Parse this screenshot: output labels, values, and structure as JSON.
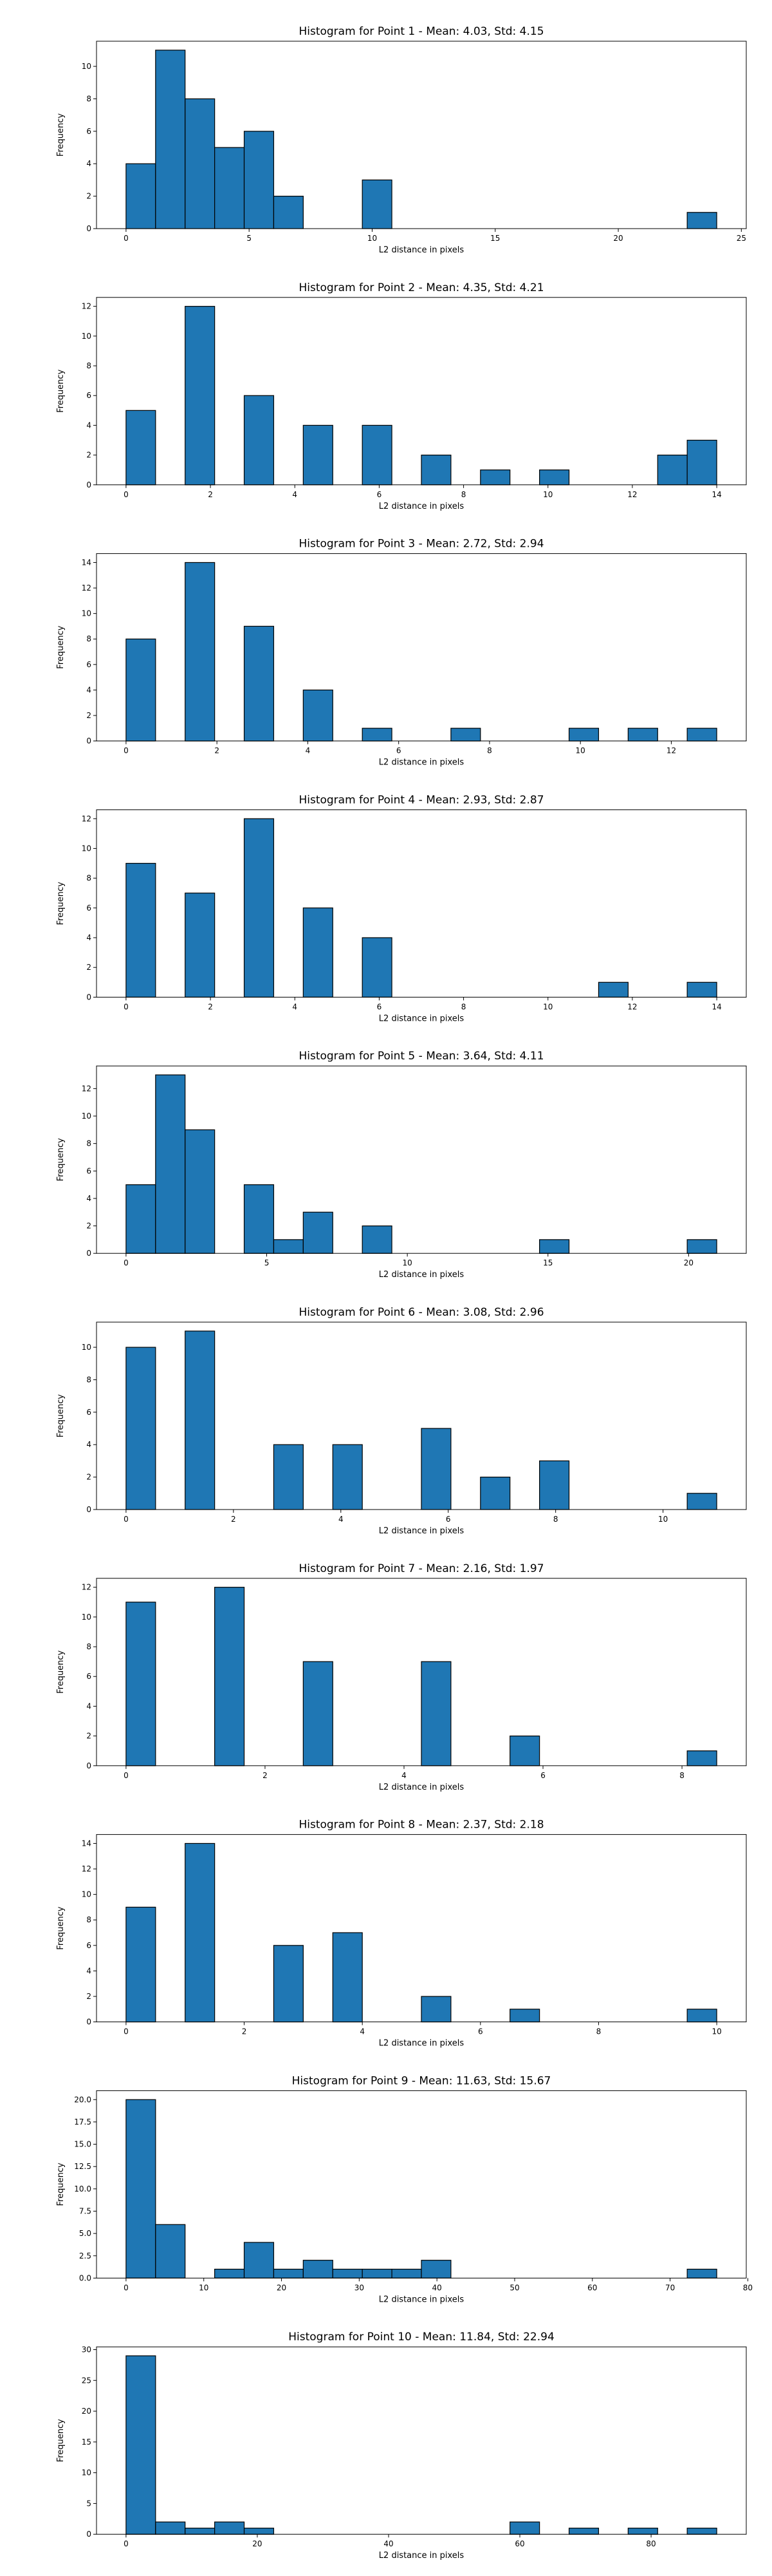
{
  "chart_data": [
    {
      "type": "bar",
      "title": "Histogram for Point 1 - Mean: 4.03, Std: 4.15",
      "xlabel": "L2 distance in pixels",
      "ylabel": "Frequency",
      "xlim": [
        -1.2,
        25.2
      ],
      "ylim": [
        0,
        11.55
      ],
      "xticks": [
        0,
        5,
        10,
        15,
        20,
        25
      ],
      "yticks": [
        0,
        2,
        4,
        6,
        8,
        10
      ],
      "ytick_labels": [
        "0",
        "2",
        "4",
        "6",
        "8",
        "10"
      ],
      "bins": [
        [
          0,
          1.2,
          4
        ],
        [
          1.2,
          2.4,
          11
        ],
        [
          2.4,
          3.6,
          8
        ],
        [
          3.6,
          4.8,
          5
        ],
        [
          4.8,
          6.0,
          6
        ],
        [
          6.0,
          7.2,
          2
        ],
        [
          9.6,
          10.8,
          3
        ],
        [
          22.8,
          24.0,
          1
        ]
      ]
    },
    {
      "type": "bar",
      "title": "Histogram for Point 2 - Mean: 4.35, Std: 4.21",
      "xlabel": "L2 distance in pixels",
      "ylabel": "Frequency",
      "xlim": [
        -0.7,
        14.7
      ],
      "ylim": [
        0,
        12.6
      ],
      "xticks": [
        0,
        2,
        4,
        6,
        8,
        10,
        12,
        14
      ],
      "yticks": [
        0,
        2,
        4,
        6,
        8,
        10,
        12
      ],
      "ytick_labels": [
        "0",
        "2",
        "4",
        "6",
        "8",
        "10",
        "12"
      ],
      "bins": [
        [
          0,
          0.7,
          5
        ],
        [
          1.4,
          2.1,
          12
        ],
        [
          2.8,
          3.5,
          6
        ],
        [
          4.2,
          4.9,
          4
        ],
        [
          5.6,
          6.3,
          4
        ],
        [
          7.0,
          7.7,
          2
        ],
        [
          8.4,
          9.1,
          1
        ],
        [
          9.8,
          10.5,
          1
        ],
        [
          12.6,
          13.3,
          2
        ],
        [
          13.3,
          14.0,
          3
        ]
      ]
    },
    {
      "type": "bar",
      "title": "Histogram for Point 3 - Mean: 2.72, Std: 2.94",
      "xlabel": "L2 distance in pixels",
      "ylabel": "Frequency",
      "xlim": [
        -0.65,
        13.65
      ],
      "ylim": [
        0,
        14.7
      ],
      "xticks": [
        0,
        2,
        4,
        6,
        8,
        10,
        12
      ],
      "yticks": [
        0,
        2,
        4,
        6,
        8,
        10,
        12,
        14
      ],
      "ytick_labels": [
        "0",
        "2",
        "4",
        "6",
        "8",
        "10",
        "12",
        "14"
      ],
      "bins": [
        [
          0,
          0.65,
          8
        ],
        [
          1.3,
          1.95,
          14
        ],
        [
          2.6,
          3.25,
          9
        ],
        [
          3.9,
          4.55,
          4
        ],
        [
          5.2,
          5.85,
          1
        ],
        [
          7.15,
          7.8,
          1
        ],
        [
          9.75,
          10.4,
          1
        ],
        [
          11.05,
          11.7,
          1
        ],
        [
          12.35,
          13.0,
          1
        ]
      ]
    },
    {
      "type": "bar",
      "title": "Histogram for Point 4 - Mean: 2.93, Std: 2.87",
      "xlabel": "L2 distance in pixels",
      "ylabel": "Frequency",
      "xlim": [
        -0.7,
        14.7
      ],
      "ylim": [
        0,
        12.6
      ],
      "xticks": [
        0,
        2,
        4,
        6,
        8,
        10,
        12,
        14
      ],
      "yticks": [
        0,
        2,
        4,
        6,
        8,
        10,
        12
      ],
      "ytick_labels": [
        "0",
        "2",
        "4",
        "6",
        "8",
        "10",
        "12"
      ],
      "bins": [
        [
          0,
          0.7,
          9
        ],
        [
          1.4,
          2.1,
          7
        ],
        [
          2.8,
          3.5,
          12
        ],
        [
          4.2,
          4.9,
          6
        ],
        [
          5.6,
          6.3,
          4
        ],
        [
          11.2,
          11.9,
          1
        ],
        [
          13.3,
          14.0,
          1
        ]
      ]
    },
    {
      "type": "bar",
      "title": "Histogram for Point 5 - Mean: 3.64, Std: 4.11",
      "xlabel": "L2 distance in pixels",
      "ylabel": "Frequency",
      "xlim": [
        -1.05,
        22.05
      ],
      "ylim": [
        0,
        13.65
      ],
      "xticks": [
        0,
        5,
        10,
        15,
        20
      ],
      "yticks": [
        0,
        2,
        4,
        6,
        8,
        10,
        12
      ],
      "ytick_labels": [
        "0",
        "2",
        "4",
        "6",
        "8",
        "10",
        "12"
      ],
      "bins": [
        [
          0,
          1.05,
          5
        ],
        [
          1.05,
          2.1,
          13
        ],
        [
          2.1,
          3.15,
          9
        ],
        [
          4.2,
          5.25,
          5
        ],
        [
          5.25,
          6.3,
          1
        ],
        [
          6.3,
          7.35,
          3
        ],
        [
          8.4,
          9.45,
          2
        ],
        [
          14.7,
          15.75,
          1
        ],
        [
          19.95,
          21.0,
          1
        ]
      ]
    },
    {
      "type": "bar",
      "title": "Histogram for Point 6 - Mean: 3.08, Std: 2.96",
      "xlabel": "L2 distance in pixels",
      "ylabel": "Frequency",
      "xlim": [
        -0.55,
        11.55
      ],
      "ylim": [
        0,
        11.55
      ],
      "xticks": [
        0,
        2,
        4,
        6,
        8,
        10
      ],
      "yticks": [
        0,
        2,
        4,
        6,
        8,
        10
      ],
      "ytick_labels": [
        "0",
        "2",
        "4",
        "6",
        "8",
        "10"
      ],
      "bins": [
        [
          0,
          0.55,
          10
        ],
        [
          1.1,
          1.65,
          11
        ],
        [
          2.75,
          3.3,
          4
        ],
        [
          3.85,
          4.4,
          4
        ],
        [
          5.5,
          6.05,
          5
        ],
        [
          6.6,
          7.15,
          2
        ],
        [
          7.7,
          8.25,
          3
        ],
        [
          10.45,
          11.0,
          1
        ]
      ]
    },
    {
      "type": "bar",
      "title": "Histogram for Point 7 - Mean: 2.16, Std: 1.97",
      "xlabel": "L2 distance in pixels",
      "ylabel": "Frequency",
      "xlim": [
        -0.425,
        8.925
      ],
      "ylim": [
        0,
        12.6
      ],
      "xticks": [
        0,
        2,
        4,
        6,
        8
      ],
      "yticks": [
        0,
        2,
        4,
        6,
        8,
        10,
        12
      ],
      "ytick_labels": [
        "0",
        "2",
        "4",
        "6",
        "8",
        "10",
        "12"
      ],
      "bins": [
        [
          0,
          0.425,
          11
        ],
        [
          1.275,
          1.7,
          12
        ],
        [
          2.55,
          2.975,
          7
        ],
        [
          4.25,
          4.675,
          7
        ],
        [
          5.525,
          5.95,
          2
        ],
        [
          8.075,
          8.5,
          1
        ]
      ]
    },
    {
      "type": "bar",
      "title": "Histogram for Point 8 - Mean: 2.37, Std: 2.18",
      "xlabel": "L2 distance in pixels",
      "ylabel": "Frequency",
      "xlim": [
        -0.5,
        10.5
      ],
      "ylim": [
        0,
        14.7
      ],
      "xticks": [
        0,
        2,
        4,
        6,
        8,
        10
      ],
      "yticks": [
        0,
        2,
        4,
        6,
        8,
        10,
        12,
        14
      ],
      "ytick_labels": [
        "0",
        "2",
        "4",
        "6",
        "8",
        "10",
        "12",
        "14"
      ],
      "bins": [
        [
          0,
          0.5,
          9
        ],
        [
          1.0,
          1.5,
          14
        ],
        [
          2.5,
          3.0,
          6
        ],
        [
          3.5,
          4.0,
          7
        ],
        [
          5.0,
          5.5,
          2
        ],
        [
          6.5,
          7.0,
          1
        ],
        [
          9.5,
          10.0,
          1
        ]
      ]
    },
    {
      "type": "bar",
      "title": "Histogram for Point 9 - Mean: 11.63, Std: 15.67",
      "xlabel": "L2 distance in pixels",
      "ylabel": "Frequency",
      "xlim": [
        -3.8,
        79.8
      ],
      "ylim": [
        0,
        21.0
      ],
      "xticks": [
        0,
        10,
        20,
        30,
        40,
        50,
        60,
        70,
        80
      ],
      "yticks": [
        0,
        2.5,
        5,
        7.5,
        10,
        12.5,
        15,
        17.5,
        20
      ],
      "ytick_labels": [
        "0.0",
        "2.5",
        "5.0",
        "7.5",
        "10.0",
        "12.5",
        "15.0",
        "17.5",
        "20.0"
      ],
      "bins": [
        [
          0,
          3.8,
          20
        ],
        [
          3.8,
          7.6,
          6
        ],
        [
          11.4,
          15.2,
          1
        ],
        [
          15.2,
          19.0,
          4
        ],
        [
          19.0,
          22.8,
          1
        ],
        [
          22.8,
          26.6,
          2
        ],
        [
          26.6,
          30.4,
          1
        ],
        [
          30.4,
          34.2,
          1
        ],
        [
          34.2,
          38.0,
          1
        ],
        [
          38.0,
          41.8,
          2
        ],
        [
          72.2,
          76.0,
          1
        ]
      ]
    },
    {
      "type": "bar",
      "title": "Histogram for Point 10 - Mean: 11.84, Std: 22.94",
      "xlabel": "L2 distance in pixels",
      "ylabel": "Frequency",
      "xlim": [
        -4.5,
        94.5
      ],
      "ylim": [
        0,
        30.45
      ],
      "xticks": [
        0,
        20,
        40,
        60,
        80
      ],
      "yticks": [
        0,
        5,
        10,
        15,
        20,
        25,
        30
      ],
      "ytick_labels": [
        "0",
        "5",
        "10",
        "15",
        "20",
        "25",
        "30"
      ],
      "bins": [
        [
          0,
          4.5,
          29
        ],
        [
          4.5,
          9.0,
          2
        ],
        [
          9.0,
          13.5,
          1
        ],
        [
          13.5,
          18.0,
          2
        ],
        [
          18.0,
          22.5,
          1
        ],
        [
          58.5,
          63.0,
          2
        ],
        [
          67.5,
          72.0,
          1
        ],
        [
          76.5,
          81.0,
          1
        ],
        [
          85.5,
          90.0,
          1
        ]
      ]
    }
  ],
  "colors": {
    "bar_fill": "#1f77b4",
    "bar_edge": "#000000",
    "axis": "#000000",
    "background": "#ffffff"
  }
}
